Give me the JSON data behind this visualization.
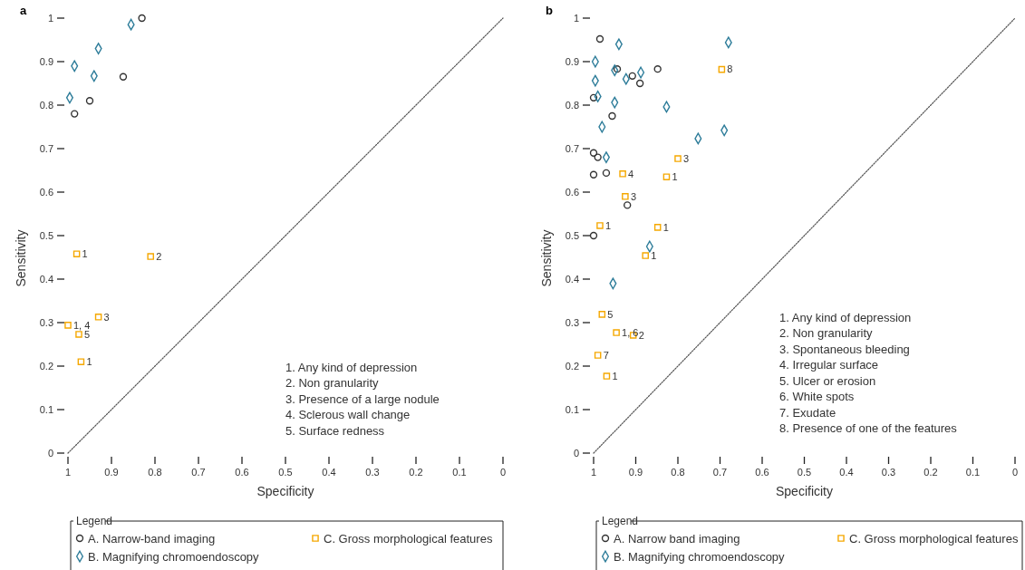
{
  "chart_data": [
    {
      "type": "scatter",
      "title": "a",
      "xlabel": "Specificity",
      "ylabel": "Sensitivity",
      "xlim": [
        1,
        0
      ],
      "ylim": [
        0,
        1
      ],
      "xticks": [
        1,
        0.9,
        0.8,
        0.7,
        0.6,
        0.5,
        0.4,
        0.3,
        0.2,
        0.1,
        0
      ],
      "yticks": [
        0,
        0.1,
        0.2,
        0.3,
        0.4,
        0.5,
        0.6,
        0.7,
        0.8,
        0.9,
        1
      ],
      "legend": "bottom",
      "legend_title": "Legend",
      "grid": false,
      "series": [
        {
          "name": "A. Narrow-band imaging",
          "color": "#333333",
          "marker": "circle",
          "x": [
            0.83,
            0.873,
            0.95,
            0.985
          ],
          "values": [
            1.0,
            0.865,
            0.81,
            0.78
          ]
        },
        {
          "name": "B. Magnifying chromoendoscopy",
          "color": "#2e7d9a",
          "marker": "diamond",
          "x": [
            0.855,
            0.93,
            0.985,
            0.94,
            0.996
          ],
          "values": [
            0.985,
            0.93,
            0.89,
            0.867,
            0.817
          ]
        },
        {
          "name": "C. Gross morphological features",
          "color": "#f5a800",
          "marker": "square",
          "x": [
            0.98,
            0.81,
            0.93,
            1.0,
            0.975,
            0.97
          ],
          "values": [
            0.458,
            0.452,
            0.313,
            0.294,
            0.273,
            0.21
          ]
        },
        {
          "type": "line",
          "color": "#555555",
          "line_style": "dotted",
          "marker": "none",
          "x": [
            1,
            0
          ],
          "values": [
            0,
            1
          ]
        }
      ],
      "annotations": [
        {
          "text": "1",
          "x": 0.98,
          "y": 0.458
        },
        {
          "text": "2",
          "x": 0.81,
          "y": 0.452
        },
        {
          "text": "3",
          "x": 0.93,
          "y": 0.313
        },
        {
          "text": "1, 4",
          "x": 1.0,
          "y": 0.294
        },
        {
          "text": "5",
          "x": 0.975,
          "y": 0.273
        },
        {
          "text": "1",
          "x": 0.97,
          "y": 0.21
        },
        "1. Any kind of depression",
        "2. Non granularity",
        "3. Presence of a large nodule",
        "4. Sclerous wall change",
        "5. Surface redness"
      ]
    },
    {
      "type": "scatter",
      "title": "b",
      "xlabel": "Specificity",
      "ylabel": "Sensitivity",
      "xlim": [
        1,
        0
      ],
      "ylim": [
        0,
        1
      ],
      "xticks": [
        1,
        0.9,
        0.8,
        0.7,
        0.6,
        0.5,
        0.4,
        0.3,
        0.2,
        0.1,
        0
      ],
      "yticks": [
        0,
        0.1,
        0.2,
        0.3,
        0.4,
        0.5,
        0.6,
        0.7,
        0.8,
        0.9,
        1
      ],
      "legend": "bottom",
      "legend_title": "Legend",
      "grid": false,
      "series": [
        {
          "name": "A. Narrow band imaging",
          "color": "#333333",
          "marker": "circle",
          "x": [
            0.985,
            0.944,
            0.908,
            0.848,
            0.89,
            1.0,
            0.956,
            1.0,
            0.99,
            1.0,
            0.97,
            0.92,
            1.0
          ],
          "values": [
            0.952,
            0.883,
            0.867,
            0.883,
            0.85,
            0.817,
            0.775,
            0.69,
            0.68,
            0.64,
            0.644,
            0.57,
            0.5
          ]
        },
        {
          "name": "B. Magnifying chromoendoscopy",
          "color": "#2e7d9a",
          "marker": "diamond",
          "x": [
            0.94,
            0.68,
            0.996,
            0.95,
            0.923,
            0.888,
            0.996,
            0.99,
            0.95,
            0.827,
            0.98,
            0.752,
            0.69,
            0.97,
            0.867,
            0.954
          ],
          "values": [
            0.94,
            0.944,
            0.9,
            0.88,
            0.86,
            0.875,
            0.856,
            0.82,
            0.806,
            0.796,
            0.75,
            0.723,
            0.742,
            0.68,
            0.475,
            0.39
          ]
        },
        {
          "name": "C. Gross morphological features",
          "color": "#f5a800",
          "marker": "square",
          "x": [
            0.696,
            0.8,
            0.827,
            0.931,
            0.925,
            0.985,
            0.848,
            0.877,
            0.98,
            0.946,
            0.906,
            0.99,
            0.969
          ],
          "values": [
            0.882,
            0.677,
            0.635,
            0.642,
            0.59,
            0.523,
            0.519,
            0.454,
            0.319,
            0.277,
            0.271,
            0.225,
            0.177
          ]
        },
        {
          "type": "line",
          "color": "#555555",
          "line_style": "dotted",
          "marker": "none",
          "x": [
            1,
            0
          ],
          "values": [
            0,
            1
          ]
        }
      ],
      "annotations": [
        {
          "text": "8",
          "x": 0.696,
          "y": 0.882
        },
        {
          "text": "3",
          "x": 0.8,
          "y": 0.677
        },
        {
          "text": "1",
          "x": 0.827,
          "y": 0.635
        },
        {
          "text": "4",
          "x": 0.931,
          "y": 0.642
        },
        {
          "text": "3",
          "x": 0.925,
          "y": 0.59
        },
        {
          "text": "1",
          "x": 0.985,
          "y": 0.523
        },
        {
          "text": "1",
          "x": 0.848,
          "y": 0.519
        },
        {
          "text": "1",
          "x": 0.877,
          "y": 0.454
        },
        {
          "text": "5",
          "x": 0.98,
          "y": 0.319
        },
        {
          "text": "1, 6",
          "x": 0.946,
          "y": 0.277
        },
        {
          "text": "2",
          "x": 0.906,
          "y": 0.271
        },
        {
          "text": "7",
          "x": 0.99,
          "y": 0.225
        },
        {
          "text": "1",
          "x": 0.969,
          "y": 0.177
        },
        "1. Any kind of depression",
        "2. Non granularity",
        "3. Spontaneous bleeding",
        "4. Irregular surface",
        "5. Ulcer or erosion",
        "6. White spots",
        "7. Exudate",
        "8. Presence of one of the features"
      ]
    }
  ]
}
